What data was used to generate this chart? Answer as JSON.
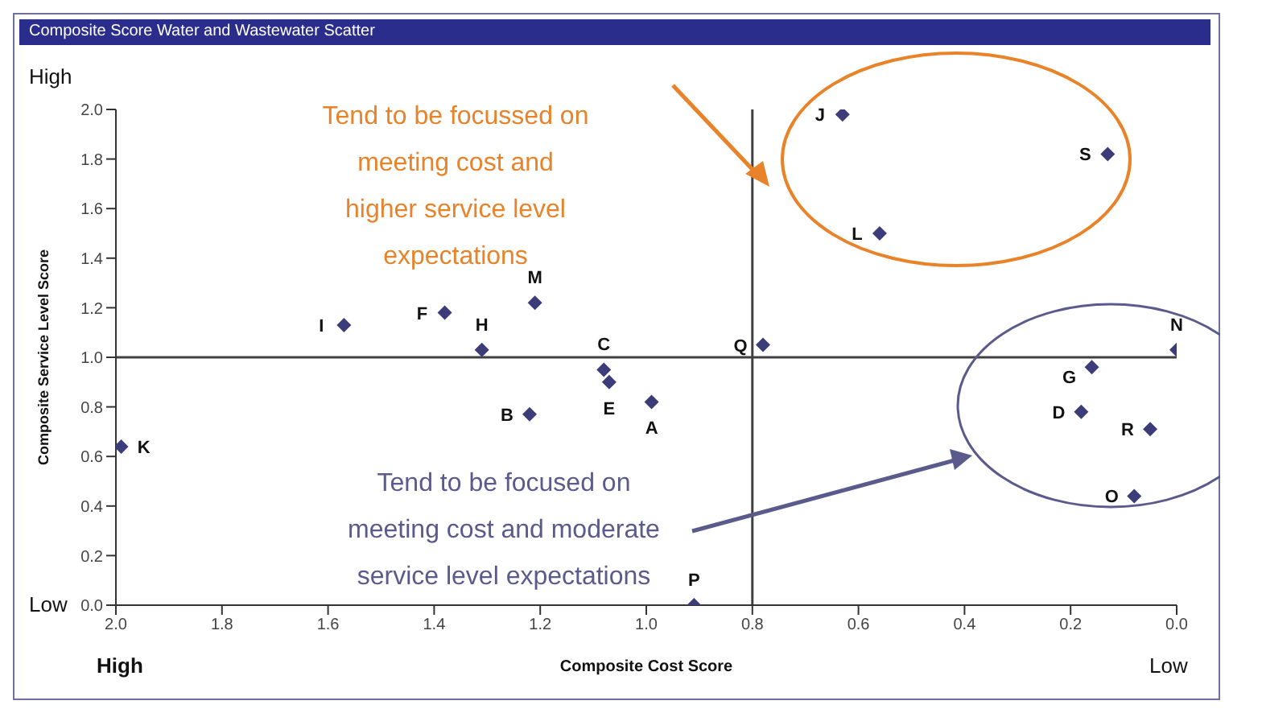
{
  "chart_data": {
    "type": "scatter",
    "title": "Composite Score Water and Wastewater Scatter",
    "xlabel": "Composite Cost Score",
    "ylabel": "Composite Service Level Score",
    "annotations": [
      "High",
      "Low",
      "High",
      "Low",
      "Tend to be focussed on\nmeeting cost and\nhigher service level\nexpectations",
      "Tend to be focused on\nmeeting cost and moderate\nservice level expectations"
    ],
    "xlim": [
      2,
      0
    ],
    "xticks": [
      {
        "value": 2,
        "label": "2.0"
      },
      {
        "value": 1.8,
        "label": "1.8"
      },
      {
        "value": 1.6,
        "label": "1.6"
      },
      {
        "value": 1.4,
        "label": "1.4"
      },
      {
        "value": 1.2,
        "label": "1.2"
      },
      {
        "value": 1,
        "label": "1.0"
      },
      {
        "value": 0.8,
        "label": "0.8"
      },
      {
        "value": 0.6,
        "label": "0.6"
      },
      {
        "value": 0.4,
        "label": "0.4"
      },
      {
        "value": 0.2,
        "label": "0.2"
      },
      {
        "value": 0,
        "label": "0.0"
      }
    ],
    "ylim": [
      0,
      2
    ],
    "yticks": [
      {
        "value": 0,
        "label": "0.0"
      },
      {
        "value": 0.2,
        "label": "0.2"
      },
      {
        "value": 0.4,
        "label": "0.4"
      },
      {
        "value": 0.6,
        "label": "0.6"
      },
      {
        "value": 0.8,
        "label": "0.8"
      },
      {
        "value": 1,
        "label": "1.0"
      },
      {
        "value": 1.2,
        "label": "1.2"
      },
      {
        "value": 1.4,
        "label": "1.4"
      },
      {
        "value": 1.6,
        "label": "1.6"
      },
      {
        "value": 1.8,
        "label": "1.8"
      },
      {
        "value": 2,
        "label": "2.0"
      }
    ],
    "ref_lines": [
      {
        "axis": "x",
        "value": 0.8,
        "color": "#404040"
      },
      {
        "axis": "y",
        "value": 1,
        "color": "#404040"
      }
    ],
    "grid": false,
    "legend": false,
    "marker": "diamond",
    "series": [
      {
        "name": "J",
        "color": "#3c3c78",
        "x": [
          0.63
        ],
        "values": [
          1.98
        ]
      },
      {
        "name": "S",
        "color": "#3c3c78",
        "x": [
          0.13
        ],
        "values": [
          1.82
        ]
      },
      {
        "name": "L",
        "color": "#3c3c78",
        "x": [
          0.56
        ],
        "values": [
          1.5
        ]
      },
      {
        "name": "Q",
        "color": "#3c3c78",
        "x": [
          0.78
        ],
        "values": [
          1.05
        ]
      },
      {
        "name": "N",
        "color": "#3c3c78",
        "x": [
          0
        ],
        "values": [
          1.03
        ]
      },
      {
        "name": "G",
        "color": "#3c3c78",
        "x": [
          0.16
        ],
        "values": [
          0.96
        ]
      },
      {
        "name": "D",
        "color": "#3c3c78",
        "x": [
          0.18
        ],
        "values": [
          0.78
        ]
      },
      {
        "name": "R",
        "color": "#3c3c78",
        "x": [
          0.05
        ],
        "values": [
          0.71
        ]
      },
      {
        "name": "O",
        "color": "#3c3c78",
        "x": [
          0.08
        ],
        "values": [
          0.44
        ]
      },
      {
        "name": "P",
        "color": "#3c3c78",
        "x": [
          0.91
        ],
        "values": [
          0
        ]
      },
      {
        "name": "A",
        "color": "#3c3c78",
        "x": [
          0.99
        ],
        "values": [
          0.82
        ]
      },
      {
        "name": "E",
        "color": "#3c3c78",
        "x": [
          1.07
        ],
        "values": [
          0.9
        ]
      },
      {
        "name": "C",
        "color": "#3c3c78",
        "x": [
          1.08
        ],
        "values": [
          0.95
        ]
      },
      {
        "name": "B",
        "color": "#3c3c78",
        "x": [
          1.22
        ],
        "values": [
          0.77
        ]
      },
      {
        "name": "M",
        "color": "#3c3c78",
        "x": [
          1.21
        ],
        "values": [
          1.22
        ]
      },
      {
        "name": "H",
        "color": "#3c3c78",
        "x": [
          1.31
        ],
        "values": [
          1.03
        ]
      },
      {
        "name": "F",
        "color": "#3c3c78",
        "x": [
          1.38
        ],
        "values": [
          1.18
        ]
      },
      {
        "name": "I",
        "color": "#3c3c78",
        "x": [
          1.57
        ],
        "values": [
          1.13
        ]
      },
      {
        "name": "K",
        "color": "#3c3c78",
        "x": [
          1.99
        ],
        "values": [
          0.64
        ]
      }
    ]
  }
}
